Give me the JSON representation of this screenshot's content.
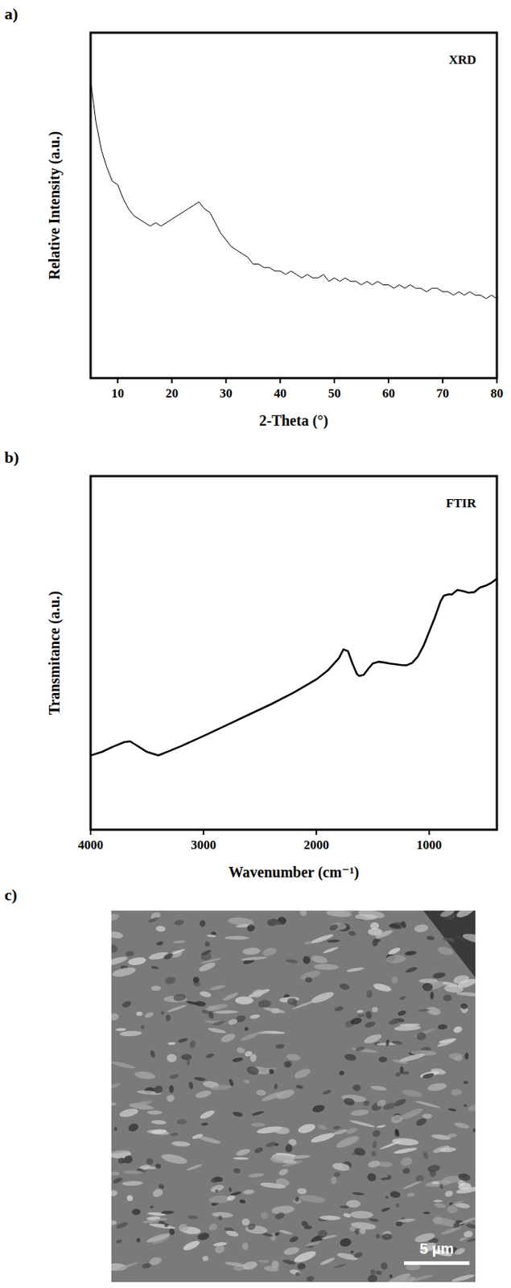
{
  "chart_data": [
    {
      "type": "line",
      "panel_label": "a)",
      "title": "XRD",
      "x_label": "2-Theta (°)",
      "y_label": "Relative Intensity (a.u.)",
      "x": [
        5,
        6,
        7,
        8,
        9,
        10,
        11,
        12,
        13,
        14,
        15,
        16,
        17,
        18,
        19,
        20,
        21,
        22,
        23,
        24,
        25,
        26,
        27,
        28,
        29,
        30,
        31,
        32,
        33,
        34,
        35,
        36,
        37,
        38,
        39,
        40,
        41,
        42,
        43,
        44,
        45,
        46,
        47,
        48,
        49,
        50,
        51,
        52,
        53,
        54,
        55,
        56,
        57,
        58,
        59,
        60,
        61,
        62,
        63,
        64,
        65,
        66,
        67,
        68,
        69,
        70,
        71,
        72,
        73,
        74,
        75,
        76,
        77,
        78,
        79,
        80
      ],
      "values": [
        86,
        74,
        66,
        61,
        57,
        56,
        52,
        49,
        47,
        46,
        45,
        44,
        45,
        44,
        45,
        46,
        47,
        48,
        49,
        50,
        51,
        49,
        48,
        45,
        42,
        40,
        38,
        37,
        36,
        35,
        33,
        33,
        32,
        32,
        31,
        31,
        30,
        31,
        30,
        29,
        30,
        29,
        29,
        30,
        28,
        29,
        28,
        29,
        28,
        28,
        27,
        28,
        27,
        28,
        27,
        27,
        26,
        27,
        26,
        27,
        26,
        26,
        25,
        26,
        26,
        25,
        25,
        24,
        25,
        24,
        25,
        24,
        24,
        23,
        24,
        23
      ],
      "color": "#000000",
      "xlim": [
        5,
        80
      ],
      "xticks": [
        10,
        20,
        30,
        40,
        50,
        60,
        70,
        80
      ],
      "ylim": [
        0,
        100
      ],
      "yticks": [],
      "tick_labels": "x",
      "grid": false
    },
    {
      "type": "line",
      "panel_label": "b)",
      "title": "FTIR",
      "x_label": "Wavenumber (cm⁻¹)",
      "y_label": "Transmitance (a.u.)",
      "x": [
        4000,
        3900,
        3800,
        3700,
        3650,
        3600,
        3500,
        3400,
        3300,
        3200,
        3000,
        2800,
        2600,
        2400,
        2200,
        2000,
        1900,
        1800,
        1760,
        1720,
        1680,
        1640,
        1620,
        1580,
        1540,
        1500,
        1450,
        1400,
        1350,
        1300,
        1250,
        1200,
        1150,
        1100,
        1050,
        1000,
        950,
        900,
        870,
        850,
        820,
        800,
        750,
        700,
        650,
        600,
        550,
        500,
        450,
        400
      ],
      "values": [
        21,
        22,
        23.5,
        24.8,
        25,
        24,
        22,
        21,
        22.3,
        23.6,
        26.5,
        29.5,
        32.5,
        35.5,
        38.8,
        42.5,
        45,
        48.5,
        51,
        50.5,
        47,
        44,
        43.5,
        43.8,
        45.5,
        47,
        47.5,
        47.3,
        47,
        46.8,
        46.6,
        46.5,
        47.2,
        49,
        52,
        56,
        60,
        64.5,
        66.2,
        66.4,
        66.6,
        66.5,
        67.8,
        67.5,
        67,
        67.2,
        68.5,
        69,
        69.8,
        71
      ],
      "color": "#000000",
      "xlim": [
        4000,
        400
      ],
      "xticks": [
        4000,
        3000,
        2000,
        1000
      ],
      "ylim": [
        0,
        100
      ],
      "yticks": [],
      "tick_labels": "x",
      "grid": false
    }
  ],
  "image": {
    "panel_label": "c)",
    "scale_bar": "5 µm"
  }
}
